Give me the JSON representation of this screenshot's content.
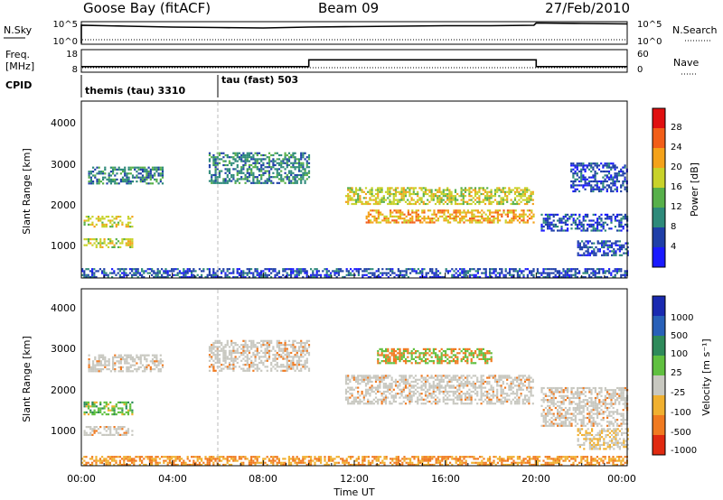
{
  "header": {
    "title": "Goose Bay (fitACF)",
    "beam": "Beam 09",
    "date": "27/Feb/2010"
  },
  "noise_panel": {
    "left_label": "N.Sky",
    "right_label": "N.Search",
    "left_ticks": [
      "10^5",
      "10^0"
    ],
    "right_ticks": [
      "10^5",
      "10^0"
    ]
  },
  "freq_panel": {
    "left_label_top": "Freq.",
    "left_label_bottom": "[MHz]",
    "left_ticks": [
      "18",
      "8"
    ],
    "right_label": "Nave",
    "right_ticks": [
      "60",
      "0"
    ]
  },
  "cpid_panel": {
    "label": "CPID",
    "modes": [
      "themis (tau) 3310",
      "tau (fast) 503"
    ]
  },
  "x_axis": {
    "title": "Time UT",
    "ticks": [
      "00:00",
      "04:00",
      "08:00",
      "12:00",
      "16:00",
      "20:00",
      "00:00"
    ]
  },
  "power_panel": {
    "y_title": "Slant Range [km]",
    "y_ticks": [
      "4000",
      "3000",
      "2000",
      "1000"
    ],
    "colorbar_title": "Power [dB]",
    "colorbar_ticks": [
      "28",
      "24",
      "20",
      "16",
      "12",
      "8",
      "4"
    ],
    "colors": [
      "#1a1aff",
      "#1f3fa8",
      "#2e8a7a",
      "#57b04a",
      "#c8d22a",
      "#f4a21a",
      "#f25e18",
      "#e01010"
    ]
  },
  "velocity_panel": {
    "y_title": "Slant Range [km]",
    "y_ticks": [
      "4000",
      "3000",
      "2000",
      "1000"
    ],
    "colorbar_title": "Velocity [m s⁻¹]",
    "colorbar_ticks": [
      "1000",
      "500",
      "100",
      "25",
      "-25",
      "-100",
      "-500",
      "-1000"
    ],
    "colors": [
      "#1a2ab0",
      "#2860b8",
      "#2e8a5a",
      "#60c040",
      "#c8c8c0",
      "#f0b030",
      "#f07a20",
      "#e02a10"
    ],
    "ground_color": "#c8c8c0"
  },
  "chart_data": [
    {
      "type": "line",
      "name": "N.Sky",
      "x_hours": [
        0,
        1,
        2,
        4,
        6,
        8,
        10,
        12,
        14,
        16,
        18,
        19.9,
        20,
        22,
        24
      ],
      "y_log10": [
        4.2,
        4.1,
        4.0,
        3.8,
        3.7,
        3.6,
        3.8,
        3.9,
        4.0,
        4.1,
        4.1,
        4.2,
        4.7,
        4.6,
        4.5
      ],
      "ylim_log10": [
        0,
        5
      ]
    },
    {
      "type": "line",
      "name": "Freq",
      "x_hours": [
        0,
        10,
        10,
        20,
        20,
        24
      ],
      "y": [
        10.5,
        10.5,
        13.5,
        13.5,
        10.5,
        10.5
      ],
      "ylim": [
        8,
        18
      ]
    },
    {
      "type": "heatmap",
      "name": "Power",
      "xlim_hours": [
        0,
        24
      ],
      "ylim_km": [
        180,
        4500
      ],
      "colorbar_range_db": [
        0,
        32
      ],
      "regions": [
        {
          "t": [
            0.1,
            2.2
          ],
          "r": [
            950,
            1150
          ],
          "v": 20
        },
        {
          "t": [
            0.1,
            2.2
          ],
          "r": [
            1450,
            1700
          ],
          "v": 19
        },
        {
          "t": [
            0.3,
            3.6
          ],
          "r": [
            2500,
            2900
          ],
          "v": 10
        },
        {
          "t": [
            5.6,
            10.0
          ],
          "r": [
            2500,
            3250
          ],
          "v": 11
        },
        {
          "t": [
            11.6,
            19.9
          ],
          "r": [
            2000,
            2400
          ],
          "v": 19
        },
        {
          "t": [
            12.5,
            19.9
          ],
          "r": [
            1550,
            1850
          ],
          "v": 22
        },
        {
          "t": [
            20.2,
            24.0
          ],
          "r": [
            1350,
            1750
          ],
          "v": 9
        },
        {
          "t": [
            21.8,
            24.0
          ],
          "r": [
            750,
            1100
          ],
          "v": 9
        },
        {
          "t": [
            21.5,
            24.0
          ],
          "r": [
            2300,
            3000
          ],
          "v": 6
        },
        {
          "t": [
            0.0,
            24.0
          ],
          "r": [
            180,
            420
          ],
          "v": 6
        }
      ]
    },
    {
      "type": "heatmap",
      "name": "Velocity",
      "xlim_hours": [
        0,
        24
      ],
      "ylim_km": [
        180,
        4500
      ],
      "regions": [
        {
          "t": [
            0.1,
            2.2
          ],
          "r": [
            950,
            1150
          ],
          "v": 0
        },
        {
          "t": [
            0.1,
            2.2
          ],
          "r": [
            1450,
            1750
          ],
          "v": 400
        },
        {
          "t": [
            0.3,
            3.6
          ],
          "r": [
            2500,
            2900
          ],
          "v": 0
        },
        {
          "t": [
            5.6,
            10.0
          ],
          "r": [
            2500,
            3250
          ],
          "v": 0
        },
        {
          "t": [
            11.6,
            19.9
          ],
          "r": [
            1700,
            2400
          ],
          "v": 0
        },
        {
          "t": [
            13.0,
            18.0
          ],
          "r": [
            2700,
            3050
          ],
          "v": 300
        },
        {
          "t": [
            20.2,
            24.0
          ],
          "r": [
            1150,
            2100
          ],
          "v": 0
        },
        {
          "t": [
            21.8,
            24.0
          ],
          "r": [
            600,
            1100
          ],
          "v": -200
        },
        {
          "t": [
            0.0,
            24.0
          ],
          "r": [
            180,
            420
          ],
          "v": -50
        }
      ]
    }
  ]
}
